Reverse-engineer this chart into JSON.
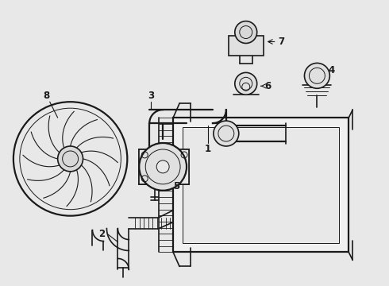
{
  "bg_color": "#e8e8e8",
  "line_color": "#1a1a1a",
  "fig_width": 4.9,
  "fig_height": 3.6,
  "dpi": 100
}
